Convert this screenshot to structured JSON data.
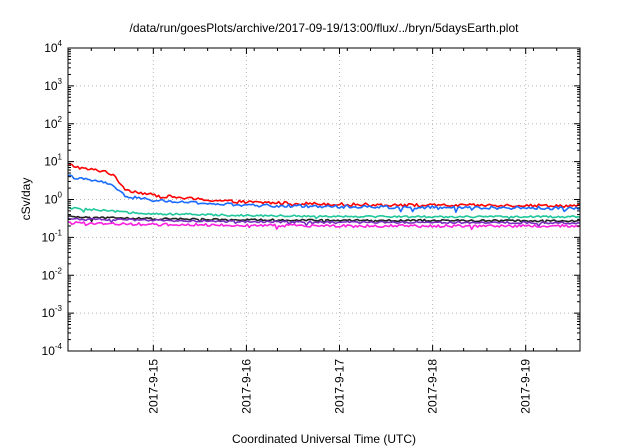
{
  "chart_data": {
    "type": "line",
    "title": "/data/run/goesPlots/archive/2017-09-19/13:00/flux/../bryn/5daysEarth.plot",
    "xlabel": "Coordinated Universal Time (UTC)",
    "ylabel": "cSv/day",
    "yscale": "log",
    "ylim": [
      0.0001,
      10000
    ],
    "y_ticks": [
      {
        "base": "10",
        "exp": "-4"
      },
      {
        "base": "10",
        "exp": "-3"
      },
      {
        "base": "10",
        "exp": "-2"
      },
      {
        "base": "10",
        "exp": "-1"
      },
      {
        "base": "10",
        "exp": "0"
      },
      {
        "base": "10",
        "exp": "1"
      },
      {
        "base": "10",
        "exp": "2"
      },
      {
        "base": "10",
        "exp": "3"
      },
      {
        "base": "10",
        "exp": "4"
      }
    ],
    "xlim": [
      "2017-09-14 02:00",
      "2017-09-19 14:00"
    ],
    "x_ticks": [
      "2017-9-15",
      "2017-9-16",
      "2017-9-17",
      "2017-9-18",
      "2017-9-19"
    ],
    "grid": true,
    "series": [
      {
        "color": "#ff0000",
        "noise": 0.08,
        "x": [
          "2017-09-14 02:00",
          "2017-09-14 06:00",
          "2017-09-14 12:00",
          "2017-09-14 14:00",
          "2017-09-14 17:00",
          "2017-09-15 00:00",
          "2017-09-15 12:00",
          "2017-09-16 00:00",
          "2017-09-17 00:00",
          "2017-09-18 00:00",
          "2017-09-19 00:00",
          "2017-09-19 14:00"
        ],
        "y": [
          8.5,
          6.5,
          5.5,
          4.0,
          1.8,
          1.3,
          1.0,
          0.85,
          0.75,
          0.7,
          0.7,
          0.68
        ]
      },
      {
        "color": "#1a6bff",
        "noise": 0.08,
        "x": [
          "2017-09-14 02:00",
          "2017-09-14 06:00",
          "2017-09-14 12:00",
          "2017-09-14 14:00",
          "2017-09-14 17:00",
          "2017-09-15 00:00",
          "2017-09-15 12:00",
          "2017-09-16 00:00",
          "2017-09-17 00:00",
          "2017-09-18 00:00",
          "2017-09-19 00:00",
          "2017-09-19 14:00"
        ],
        "y": [
          4.2,
          3.4,
          2.8,
          2.0,
          1.2,
          0.95,
          0.8,
          0.7,
          0.65,
          0.62,
          0.6,
          0.58
        ]
      },
      {
        "color": "#1fc79b",
        "noise": 0.05,
        "x": [
          "2017-09-14 02:00",
          "2017-09-14 12:00",
          "2017-09-15 00:00",
          "2017-09-16 00:00",
          "2017-09-17 00:00",
          "2017-09-18 00:00",
          "2017-09-19 14:00"
        ],
        "y": [
          0.6,
          0.5,
          0.42,
          0.38,
          0.36,
          0.35,
          0.35
        ]
      },
      {
        "color": "#222222",
        "noise": 0.05,
        "x": [
          "2017-09-14 02:00",
          "2017-09-15 00:00",
          "2017-09-16 00:00",
          "2017-09-17 00:00",
          "2017-09-18 00:00",
          "2017-09-19 14:00"
        ],
        "y": [
          0.35,
          0.31,
          0.29,
          0.28,
          0.28,
          0.27
        ]
      },
      {
        "color": "#7a2fbf",
        "noise": 0.05,
        "x": [
          "2017-09-14 02:00",
          "2017-09-15 00:00",
          "2017-09-16 00:00",
          "2017-09-17 00:00",
          "2017-09-18 00:00",
          "2017-09-19 14:00"
        ],
        "y": [
          0.31,
          0.28,
          0.26,
          0.25,
          0.25,
          0.24
        ]
      },
      {
        "color": "#ff20e0",
        "noise": 0.07,
        "x": [
          "2017-09-14 02:00",
          "2017-09-15 00:00",
          "2017-09-16 00:00",
          "2017-09-17 00:00",
          "2017-09-18 00:00",
          "2017-09-19 14:00"
        ],
        "y": [
          0.24,
          0.22,
          0.21,
          0.2,
          0.2,
          0.2
        ]
      }
    ]
  }
}
